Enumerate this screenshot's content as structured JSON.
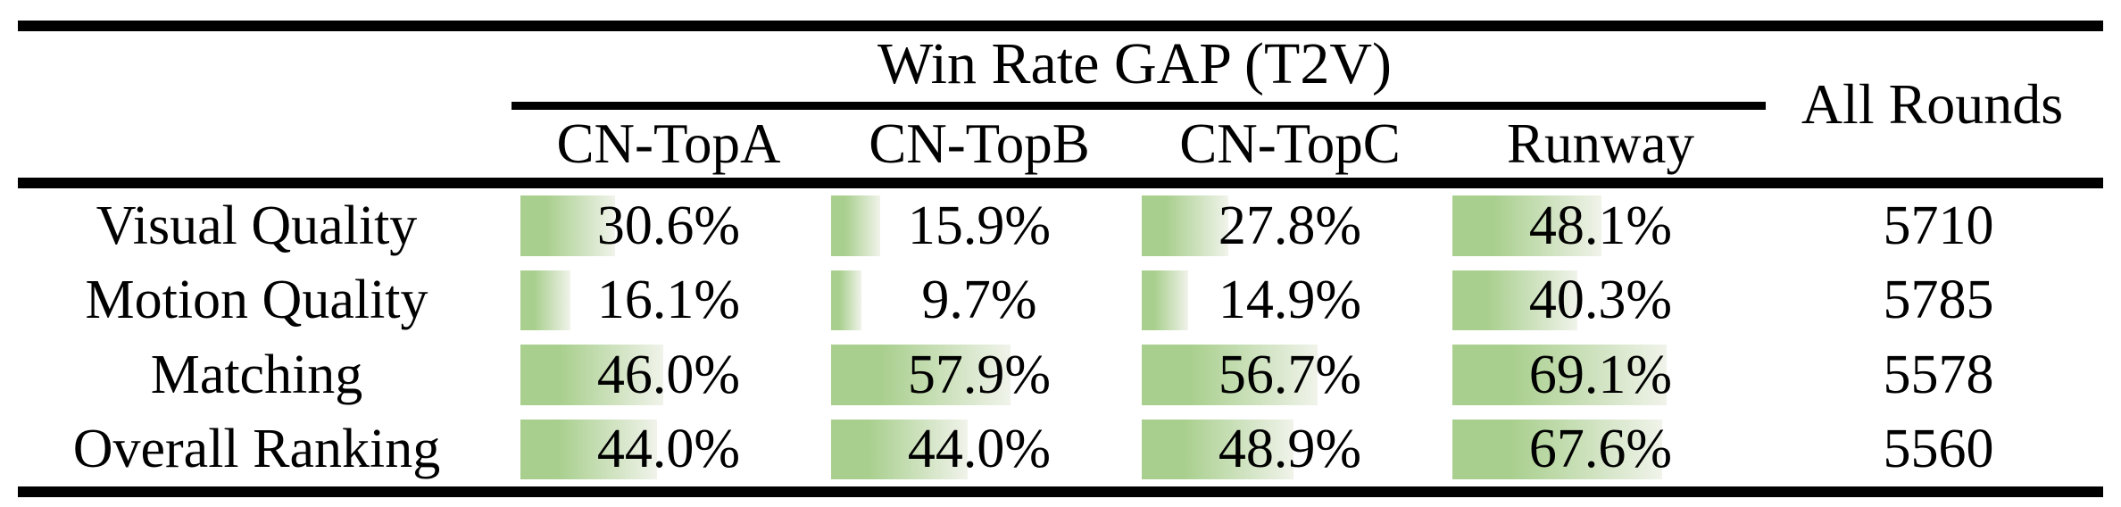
{
  "table": {
    "group_header": "Win Rate GAP (T2V)",
    "all_rounds_header": "All Rounds",
    "col_headers": [
      "CN-TopA",
      "CN-TopB",
      "CN-TopC",
      "Runway"
    ],
    "rows": [
      {
        "label": "Visual Quality",
        "values": [
          "30.6%",
          "15.9%",
          "27.8%",
          "48.1%"
        ],
        "all_rounds": "5710"
      },
      {
        "label": "Motion Quality",
        "values": [
          "16.1%",
          "9.7%",
          "14.9%",
          "40.3%"
        ],
        "all_rounds": "5785"
      },
      {
        "label": "Matching",
        "values": [
          "46.0%",
          "57.9%",
          "56.7%",
          "69.1%"
        ],
        "all_rounds": "5578"
      },
      {
        "label": "Overall Ranking",
        "values": [
          "44.0%",
          "44.0%",
          "48.9%",
          "67.6%"
        ],
        "all_rounds": "5560"
      }
    ],
    "colors": {
      "bar_gradient_start": "#a9cf8e",
      "bar_gradient_end": "#f0f3ea",
      "rule": "#000000",
      "background": "#ffffff",
      "text": "#000000"
    }
  },
  "chart_data": {
    "type": "table",
    "title": "Win Rate GAP (T2V)",
    "row_labels": [
      "Visual Quality",
      "Motion Quality",
      "Matching",
      "Overall Ranking"
    ],
    "columns": [
      "CN-TopA",
      "CN-TopB",
      "CN-TopC",
      "Runway",
      "All Rounds"
    ],
    "series": [
      {
        "name": "CN-TopA",
        "values": [
          30.6,
          16.1,
          46.0,
          44.0
        ]
      },
      {
        "name": "CN-TopB",
        "values": [
          15.9,
          9.7,
          57.9,
          44.0
        ]
      },
      {
        "name": "CN-TopC",
        "values": [
          27.8,
          14.9,
          56.7,
          48.9
        ]
      },
      {
        "name": "Runway",
        "values": [
          48.1,
          40.3,
          69.1,
          67.6
        ]
      },
      {
        "name": "All Rounds",
        "values": [
          5710,
          5785,
          5578,
          5560
        ]
      }
    ],
    "notes": "Percent cells contain horizontal green gradient data bars; bar width equals the percent of the column width. All Rounds column has no bars."
  }
}
